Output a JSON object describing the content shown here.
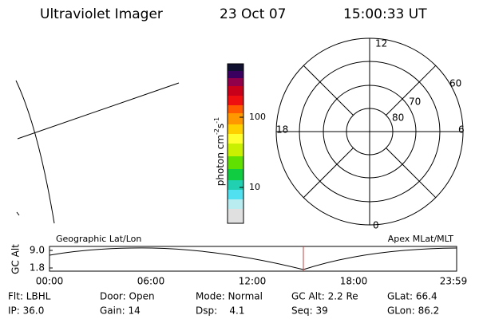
{
  "header": {
    "instrument": "Ultraviolet Imager",
    "date": "23 Oct 07",
    "time": "15:00:33 UT"
  },
  "colorbar": {
    "label": "photon cm",
    "exp1": "-2",
    "unit2": "s",
    "exp2": "-1",
    "ticks": [
      "100",
      "10"
    ]
  },
  "polar": {
    "mlt_labels": [
      "12",
      "18",
      "6",
      "0"
    ],
    "lat_labels": [
      "60",
      "70",
      "80"
    ]
  },
  "panels": {
    "left": "Geographic Lat/Lon",
    "right": "Apex MLat/MLT"
  },
  "timeline": {
    "ylabel": "GC Alt",
    "yticks": [
      "9.0",
      "1.8"
    ],
    "xticks": [
      "00:00",
      "06:00",
      "12:00",
      "18:00",
      "23:59"
    ]
  },
  "footer": {
    "rows": [
      [
        "Flt: LBHL",
        "Door: Open",
        "Mode: Normal",
        "GC Alt: 2.2 Re",
        "GLat: 66.4"
      ],
      [
        "IP: 36.0",
        "Gain: 14",
        "Dsp:    4.1",
        "Seq: 39",
        "GLon: 86.2"
      ]
    ]
  }
}
